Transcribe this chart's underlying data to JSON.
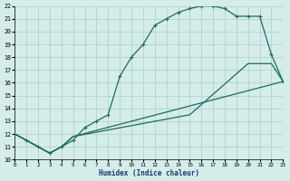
{
  "xlabel": "Humidex (Indice chaleur)",
  "xlim": [
    0,
    23
  ],
  "ylim": [
    10,
    22
  ],
  "xticks": [
    0,
    1,
    2,
    3,
    4,
    5,
    6,
    7,
    8,
    9,
    10,
    11,
    12,
    13,
    14,
    15,
    16,
    17,
    18,
    19,
    20,
    21,
    22,
    23
  ],
  "yticks": [
    10,
    11,
    12,
    13,
    14,
    15,
    16,
    17,
    18,
    19,
    20,
    21,
    22
  ],
  "bg_color": "#d4ecea",
  "grid_color": "#aacece",
  "line_color": "#1e6b5a",
  "curve_x": [
    0,
    1,
    2,
    3,
    4,
    5,
    6,
    7,
    8,
    9,
    10,
    11,
    12,
    13,
    14,
    15,
    16,
    17,
    18,
    19,
    20,
    21,
    22,
    23
  ],
  "curve_y": [
    12.0,
    11.5,
    11.0,
    10.5,
    11.0,
    11.5,
    12.5,
    13.0,
    13.5,
    16.5,
    18.0,
    19.0,
    20.5,
    21.0,
    21.5,
    21.8,
    22.0,
    22.0,
    21.8,
    21.2,
    21.2,
    21.2,
    18.2,
    16.1
  ],
  "line2_x": [
    0,
    3,
    4,
    5,
    15,
    20,
    22,
    23
  ],
  "line2_y": [
    12.0,
    10.5,
    11.0,
    11.8,
    13.5,
    17.5,
    17.5,
    16.1
  ],
  "line3_x": [
    0,
    3,
    4,
    5,
    23
  ],
  "line3_y": [
    12.0,
    10.5,
    11.0,
    11.8,
    16.1
  ]
}
